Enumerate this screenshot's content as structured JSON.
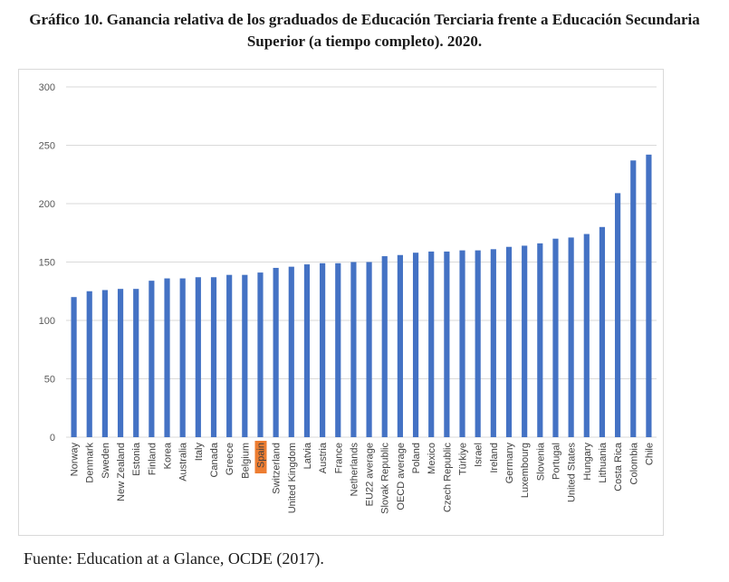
{
  "title": "Gráfico 10. Ganancia relativa de los graduados de Educación Terciaria frente a Educación Secundaria Superior (a tiempo completo). 2020.",
  "source": "Fuente: Education at a Glance, OCDE (2017).",
  "colors": {
    "bar": "#4472C4",
    "highlight": "#ED7D31",
    "grid": "#d9d9d9"
  },
  "chart_data": {
    "type": "bar",
    "title": "",
    "xlabel": "",
    "ylabel": "",
    "ylim": [
      0,
      300
    ],
    "yticks": [
      0,
      50,
      100,
      150,
      200,
      250,
      300
    ],
    "grid": true,
    "legend": "none",
    "highlight": "Spain",
    "categories": [
      "Norway",
      "Denmark",
      "Sweden",
      "New Zealand",
      "Estonia",
      "Finland",
      "Korea",
      "Australia",
      "Italy",
      "Canada",
      "Greece",
      "Belgium",
      "Spain",
      "Switzerland",
      "United Kingdom",
      "Latvia",
      "Austria",
      "France",
      "Netherlands",
      "EU22 average",
      "Slovak Republic",
      "OECD average",
      "Poland",
      "Mexico",
      "Czech Republic",
      "Türkiye",
      "Israel",
      "Ireland",
      "Germany",
      "Luxembourg",
      "Slovenia",
      "Portugal",
      "United States",
      "Hungary",
      "Lithuania",
      "Costa Rica",
      "Colombia",
      "Chile"
    ],
    "values": [
      120,
      125,
      126,
      127,
      127,
      134,
      136,
      136,
      137,
      137,
      139,
      139,
      141,
      145,
      146,
      148,
      149,
      149,
      150,
      150,
      155,
      156,
      158,
      159,
      159,
      160,
      160,
      161,
      163,
      164,
      166,
      170,
      171,
      174,
      180,
      209,
      237,
      242
    ]
  }
}
